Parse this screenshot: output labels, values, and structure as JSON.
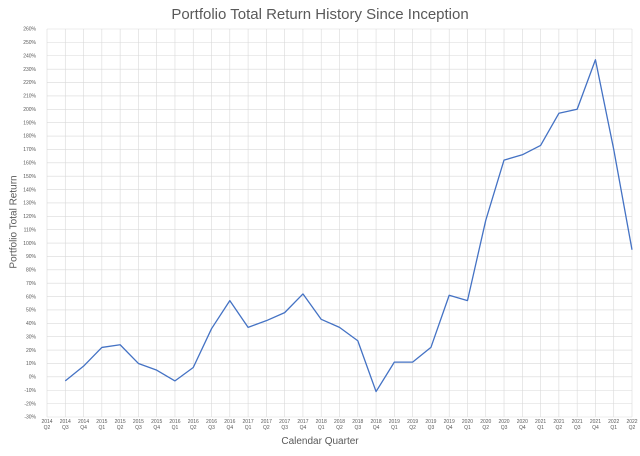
{
  "chart_data": {
    "type": "line",
    "title": "Portfolio Total Return History Since Inception",
    "xlabel": "Calendar Quarter",
    "ylabel": "Portfolio Total Return",
    "ylim": [
      -30,
      260
    ],
    "y_ticks": [
      "-30%",
      "-20%",
      "-10%",
      "0%",
      "10%",
      "20%",
      "30%",
      "40%",
      "50%",
      "60%",
      "70%",
      "80%",
      "90%",
      "100%",
      "110%",
      "120%",
      "130%",
      "140%",
      "150%",
      "160%",
      "170%",
      "180%",
      "190%",
      "200%",
      "210%",
      "220%",
      "230%",
      "240%",
      "250%",
      "260%"
    ],
    "grid": true,
    "legend": "none",
    "categories": [
      [
        "2014",
        "Q2"
      ],
      [
        "2014",
        "Q3"
      ],
      [
        "2014",
        "Q4"
      ],
      [
        "2015",
        "Q1"
      ],
      [
        "2015",
        "Q2"
      ],
      [
        "2015",
        "Q3"
      ],
      [
        "2015",
        "Q4"
      ],
      [
        "2016",
        "Q1"
      ],
      [
        "2016",
        "Q2"
      ],
      [
        "2016",
        "Q3"
      ],
      [
        "2016",
        "Q4"
      ],
      [
        "2017",
        "Q1"
      ],
      [
        "2017",
        "Q2"
      ],
      [
        "2017",
        "Q3"
      ],
      [
        "2017",
        "Q4"
      ],
      [
        "2018",
        "Q1"
      ],
      [
        "2018",
        "Q2"
      ],
      [
        "2018",
        "Q3"
      ],
      [
        "2018",
        "Q4"
      ],
      [
        "2019",
        "Q1"
      ],
      [
        "2019",
        "Q2"
      ],
      [
        "2019",
        "Q3"
      ],
      [
        "2019",
        "Q4"
      ],
      [
        "2020",
        "Q1"
      ],
      [
        "2020",
        "Q2"
      ],
      [
        "2020",
        "Q3"
      ],
      [
        "2020",
        "Q4"
      ],
      [
        "2021",
        "Q1"
      ],
      [
        "2021",
        "Q2"
      ],
      [
        "2021",
        "Q3"
      ],
      [
        "2021",
        "Q4"
      ],
      [
        "2022",
        "Q1"
      ],
      [
        "2022",
        "Q2"
      ]
    ],
    "series": [
      {
        "color": "#4472c4",
        "values": [
          null,
          -3,
          8,
          22,
          24,
          10,
          5,
          -3,
          7,
          36,
          57,
          37,
          42,
          48,
          62,
          43,
          37,
          27,
          -11,
          11,
          11,
          22,
          61,
          57,
          117,
          162,
          166,
          173,
          197,
          200,
          237,
          170,
          95
        ]
      }
    ]
  }
}
